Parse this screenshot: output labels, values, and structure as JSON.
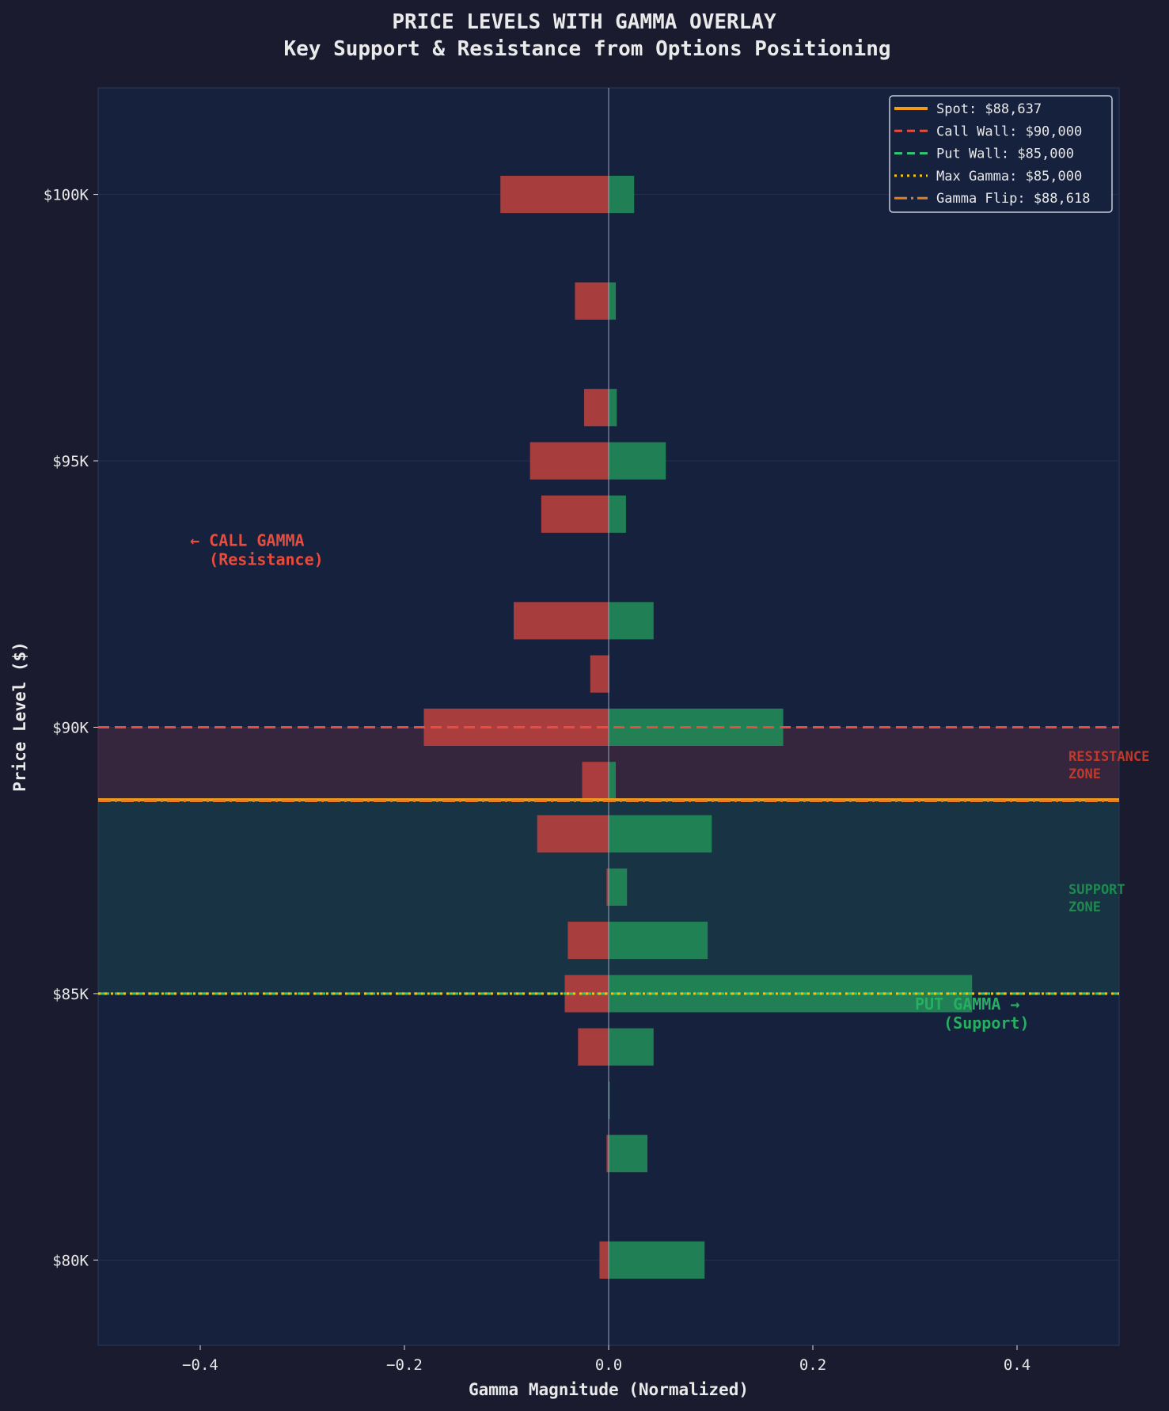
{
  "chart_data": {
    "type": "bar",
    "orientation": "horizontal",
    "title": "PRICE LEVELS WITH GAMMA OVERLAY",
    "subtitle": "Key Support & Resistance from Options Positioning",
    "xlabel": "Gamma Magnitude (Normalized)",
    "ylabel": "Price Level ($)",
    "xlim": [
      -0.5,
      0.5
    ],
    "ylim_k": [
      78.4,
      102
    ],
    "xticks": [
      -0.4,
      -0.2,
      0.0,
      0.2,
      0.4
    ],
    "xtick_labels": [
      "−0.4",
      "−0.2",
      "0.0",
      "0.2",
      "0.4"
    ],
    "yticks_k": [
      80,
      85,
      90,
      95,
      100
    ],
    "ytick_labels": [
      "$80K",
      "$85K",
      "$90K",
      "$95K",
      "$100K"
    ],
    "grid": true,
    "price_levels_k": [
      100,
      98,
      96,
      95,
      94,
      92,
      91,
      90,
      89,
      88,
      87,
      86,
      85,
      84,
      83,
      82,
      80
    ],
    "series": [
      {
        "key": "call",
        "color": "#b8403e",
        "values": [
          -0.106,
          -0.033,
          -0.024,
          -0.077,
          -0.066,
          -0.093,
          -0.018,
          -0.181,
          -0.026,
          -0.07,
          -0.002,
          -0.04,
          -0.043,
          -0.03,
          0,
          -0.002,
          -0.009
        ]
      },
      {
        "key": "put",
        "color": "#218a57",
        "values": [
          0.025,
          0.007,
          0.008,
          0.056,
          0.017,
          0.044,
          0,
          0.171,
          0.007,
          0.101,
          0.018,
          0.097,
          0.356,
          0.044,
          0.001,
          0.038,
          0.094
        ]
      }
    ],
    "reference_lines": [
      {
        "label": "Spot: $88,637",
        "value_k": 88.637,
        "color": "#f39c12",
        "style": "solid"
      },
      {
        "label": "Call Wall: $90,000",
        "value_k": 90,
        "color": "#e74c3c",
        "style": "dashed"
      },
      {
        "label": "Put Wall: $85,000",
        "value_k": 85,
        "color": "#2ecc71",
        "style": "dashed"
      },
      {
        "label": "Max Gamma: $85,000",
        "value_k": 85,
        "color": "#f1c40f",
        "style": "dotted"
      },
      {
        "label": "Gamma Flip: $88,618",
        "value_k": 88.618,
        "color": "#e67e22",
        "style": "dashdot"
      }
    ],
    "zones": [
      {
        "label": [
          "RESISTANCE",
          "ZONE"
        ],
        "from_k": 88.618,
        "to_k": 90,
        "color": "#5a2a3c",
        "text_color": "#c0392b"
      },
      {
        "label": [
          "SUPPORT",
          "ZONE"
        ],
        "from_k": 85,
        "to_k": 88.618,
        "color": "#1a4a4a",
        "text_color": "#1e8a4f"
      }
    ],
    "annotations": [
      {
        "lines": [
          "← CALL GAMMA",
          "  (Resistance)"
        ],
        "x": -0.41,
        "y_k": 93.4,
        "color": "#e74c3c"
      },
      {
        "lines": [
          "PUT GAMMA →",
          "   (Support)"
        ],
        "x": 0.3,
        "y_k": 84.7,
        "color": "#27ae60"
      }
    ],
    "legend_position": "top-right",
    "colors": {
      "background": "#1a1b2e",
      "plot_background": "#16213e",
      "text": "#e8e8e8"
    }
  }
}
